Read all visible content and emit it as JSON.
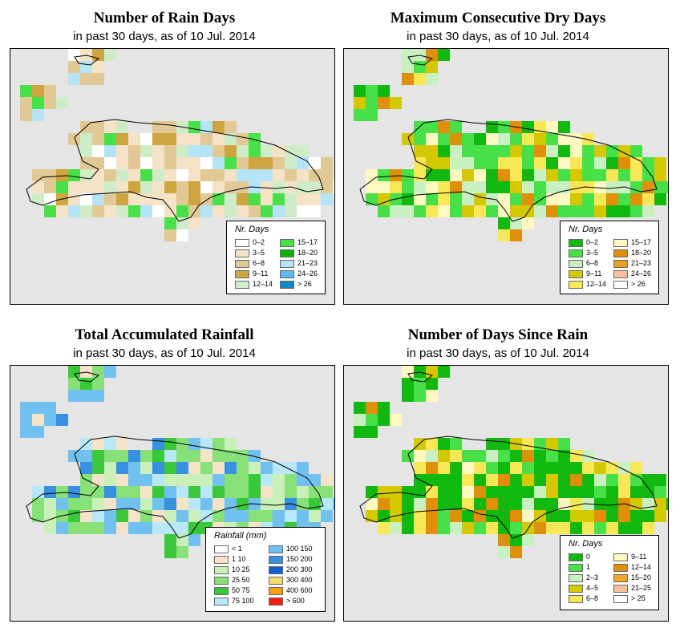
{
  "panels": [
    {
      "key": "rain_days",
      "title": "Number of Rain Days",
      "subtitle": "in past 30 days, as of  10 Jul. 2014",
      "legend": {
        "title": "Nr. Days",
        "items": [
          {
            "label": "0–2",
            "color": "#ffffff"
          },
          {
            "label": "3–5",
            "color": "#f5e3c8"
          },
          {
            "label": "6–8",
            "color": "#e2c894"
          },
          {
            "label": "9–11",
            "color": "#cfa53f"
          },
          {
            "label": "12–14",
            "color": "#cfecc8"
          },
          {
            "label": "15–17",
            "color": "#48e048"
          },
          {
            "label": "18–20",
            "color": "#10b010"
          },
          {
            "label": "21–23",
            "color": "#b4e4f5"
          },
          {
            "label": "24–26",
            "color": "#60b8ee"
          },
          {
            "label": "> 26",
            "color": "#1488c8"
          }
        ]
      }
    },
    {
      "key": "max_dry",
      "title": "Maximum Consecutive Dry Days",
      "subtitle": "in past 30 days, as of  10 Jul. 2014",
      "legend": {
        "title": "Nr. Days",
        "items": [
          {
            "label": "0–2",
            "color": "#10b810"
          },
          {
            "label": "3–5",
            "color": "#48e048"
          },
          {
            "label": "6–8",
            "color": "#c8f0c0"
          },
          {
            "label": "9–11",
            "color": "#d4c800"
          },
          {
            "label": "12–14",
            "color": "#f8e858"
          },
          {
            "label": "15–17",
            "color": "#fff8c0"
          },
          {
            "label": "18–20",
            "color": "#e09008"
          },
          {
            "label": "21–23",
            "color": "#e8a020"
          },
          {
            "label": "24–26",
            "color": "#f8c098"
          },
          {
            "label": "> 26",
            "color": "#ffffff"
          }
        ]
      }
    },
    {
      "key": "rainfall",
      "title": "Total Accumulated Rainfall",
      "subtitle": "in past 30 days, as of  10 Jul. 2014",
      "legend": {
        "title": "Rainfall (mm)",
        "items": [
          {
            "label": "< 1",
            "color": "#ffffff"
          },
          {
            "label": "1   10",
            "color": "#f5e3c8"
          },
          {
            "label": "10   25",
            "color": "#c8f0b8"
          },
          {
            "label": "25   50",
            "color": "#88e078"
          },
          {
            "label": "50   75",
            "color": "#38c838"
          },
          {
            "label": "75  100",
            "color": "#b8e8f8"
          },
          {
            "label": "100  150",
            "color": "#70c0f0"
          },
          {
            "label": "150  200",
            "color": "#3890e0"
          },
          {
            "label": "200  300",
            "color": "#1060d0"
          },
          {
            "label": "300  400",
            "color": "#f8d870"
          },
          {
            "label": "400  600",
            "color": "#f8a010"
          },
          {
            "label": "> 600",
            "color": "#f02010"
          }
        ]
      }
    },
    {
      "key": "since_rain",
      "title": "Number of Days Since Rain",
      "subtitle": "in past 30 days, as of  10 Jul. 2014",
      "legend": {
        "title": "Nr. Days",
        "items": [
          {
            "label": "0",
            "color": "#10b810"
          },
          {
            "label": "1",
            "color": "#48e048"
          },
          {
            "label": "2–3",
            "color": "#c8f0c0"
          },
          {
            "label": "4–5",
            "color": "#d4c800"
          },
          {
            "label": "6–8",
            "color": "#f8e858"
          },
          {
            "label": "9–11",
            "color": "#fff8c0"
          },
          {
            "label": "12–14",
            "color": "#e09008"
          },
          {
            "label": "15–20",
            "color": "#f0a828"
          },
          {
            "label": "21–25",
            "color": "#f8c098"
          },
          {
            "label": "> 25",
            "color": "#ffffff"
          }
        ]
      }
    }
  ]
}
